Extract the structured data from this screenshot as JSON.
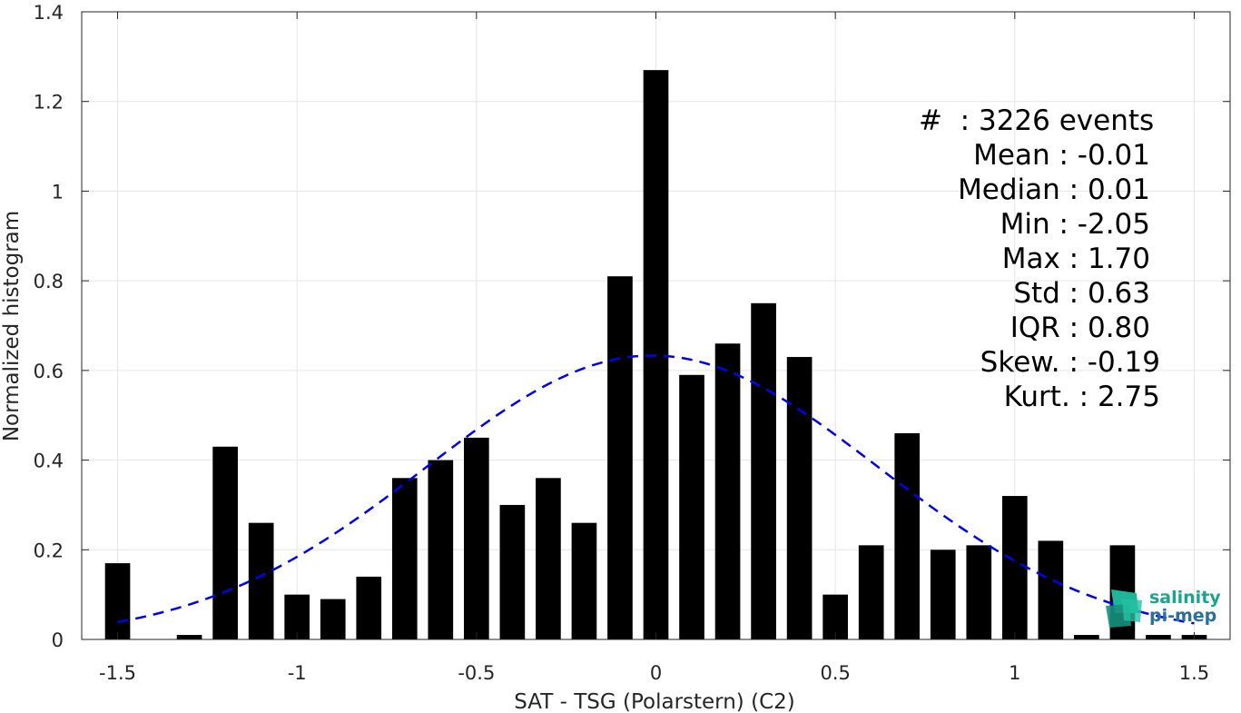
{
  "chart_data": {
    "type": "bar",
    "xlabel": "SAT - TSG (Polarstern) (C2)",
    "ylabel": "Normalized histogram",
    "xlim": [
      -1.6,
      1.6
    ],
    "ylim": [
      0,
      1.4
    ],
    "xticks": [
      -1.5,
      -1,
      -0.5,
      0,
      0.5,
      1,
      1.5
    ],
    "xtick_labels": [
      "-1.5",
      "-1",
      "-0.5",
      "0",
      "0.5",
      "1",
      "1.5"
    ],
    "yticks": [
      0,
      0.2,
      0.4,
      0.6,
      0.8,
      1,
      1.2,
      1.4
    ],
    "ytick_labels": [
      "0",
      "0.2",
      "0.4",
      "0.6",
      "0.8",
      "1",
      "1.2",
      "1.4"
    ],
    "grid": true,
    "bar_width": 0.07,
    "bar_color": "#000000",
    "bars": [
      {
        "x": -1.5,
        "y": 0.17
      },
      {
        "x": -1.4,
        "y": 0.0
      },
      {
        "x": -1.3,
        "y": 0.01
      },
      {
        "x": -1.2,
        "y": 0.43
      },
      {
        "x": -1.1,
        "y": 0.26
      },
      {
        "x": -1.0,
        "y": 0.1
      },
      {
        "x": -0.9,
        "y": 0.09
      },
      {
        "x": -0.8,
        "y": 0.14
      },
      {
        "x": -0.7,
        "y": 0.36
      },
      {
        "x": -0.6,
        "y": 0.4
      },
      {
        "x": -0.5,
        "y": 0.45
      },
      {
        "x": -0.4,
        "y": 0.3
      },
      {
        "x": -0.3,
        "y": 0.36
      },
      {
        "x": -0.2,
        "y": 0.26
      },
      {
        "x": -0.1,
        "y": 0.81
      },
      {
        "x": 0.0,
        "y": 1.27
      },
      {
        "x": 0.1,
        "y": 0.59
      },
      {
        "x": 0.2,
        "y": 0.66
      },
      {
        "x": 0.3,
        "y": 0.75
      },
      {
        "x": 0.4,
        "y": 0.63
      },
      {
        "x": 0.5,
        "y": 0.1
      },
      {
        "x": 0.6,
        "y": 0.21
      },
      {
        "x": 0.7,
        "y": 0.46
      },
      {
        "x": 0.8,
        "y": 0.2
      },
      {
        "x": 0.9,
        "y": 0.21
      },
      {
        "x": 1.0,
        "y": 0.32
      },
      {
        "x": 1.1,
        "y": 0.22
      },
      {
        "x": 1.2,
        "y": 0.01
      },
      {
        "x": 1.3,
        "y": 0.21
      },
      {
        "x": 1.4,
        "y": 0.01
      },
      {
        "x": 1.5,
        "y": 0.01
      }
    ],
    "fit_curve": {
      "style": "dashed",
      "color": "#0000ee",
      "mean": -0.01,
      "std": 0.63,
      "xrange": [
        -1.5,
        1.5
      ]
    }
  },
  "stats": {
    "lines": [
      "#  : 3226 events",
      "Mean : -0.01",
      "Median : 0.01",
      "Min : -2.05",
      "Max : 1.70",
      "Std : 0.63",
      "IQR : 0.80",
      "Skew. : -0.19",
      "Kurt. : 2.75"
    ]
  },
  "logo": {
    "line1": "salinity",
    "line2": "pi-mep"
  }
}
